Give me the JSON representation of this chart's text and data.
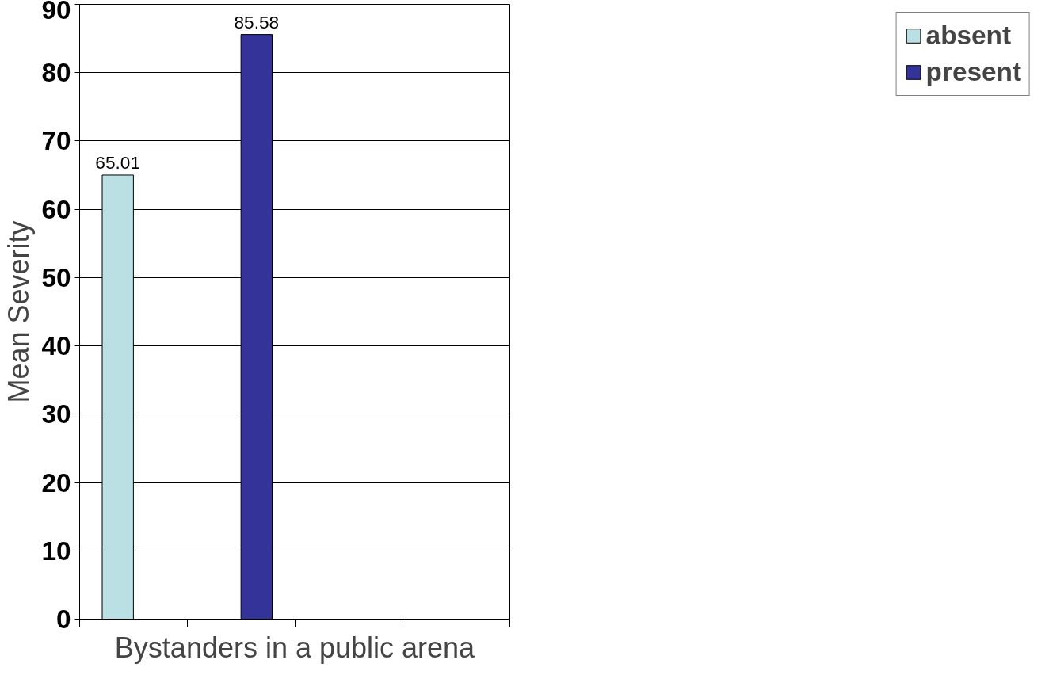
{
  "chart_data": {
    "type": "bar",
    "xlabel": "Bystanders in a public arena",
    "ylabel": "Mean Severity",
    "categories": [
      null,
      null,
      null,
      null
    ],
    "series": [
      {
        "name": "absent",
        "color": "#bbe0e3",
        "values": [
          65.01,
          null,
          null,
          null
        ]
      },
      {
        "name": "present",
        "color": "#333399",
        "values": [
          null,
          85.58,
          null,
          null
        ]
      }
    ],
    "ylim": [
      0,
      90
    ],
    "yticks": [
      0,
      10,
      20,
      30,
      40,
      50,
      60,
      70,
      80,
      90
    ],
    "grid": "y",
    "legend": "right",
    "data_labels": true,
    "tick_labels": "y"
  }
}
